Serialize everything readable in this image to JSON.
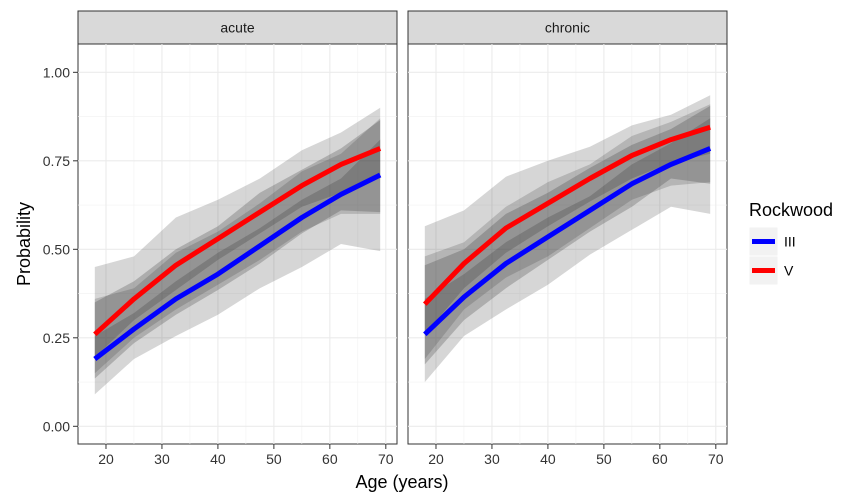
{
  "chart_data": {
    "type": "line",
    "xlabel": "Age (years)",
    "ylabel": "Probability",
    "xlim": [
      15,
      72
    ],
    "ylim": [
      -0.05,
      1.08
    ],
    "x_ticks": [
      20,
      30,
      40,
      50,
      60,
      70
    ],
    "y_ticks": [
      0,
      0.25,
      0.5,
      0.75,
      1.0
    ],
    "x_tick_labels": [
      "20",
      "30",
      "40",
      "50",
      "60",
      "70"
    ],
    "y_tick_labels": [
      "0.00",
      "0.25",
      "0.50",
      "0.75",
      "1.00"
    ],
    "grid": true,
    "legend": {
      "title": "Rockwood",
      "position": "right",
      "items": [
        {
          "label": "III",
          "color": "#0000ff"
        },
        {
          "label": "V",
          "color": "#ff0000"
        }
      ]
    },
    "panels": [
      {
        "label": "acute",
        "x": [
          18,
          25,
          32.5,
          40,
          47.5,
          55,
          62,
          69
        ],
        "series": [
          {
            "name": "III",
            "color": "#0000ff",
            "values": [
              0.19,
              0.275,
              0.36,
              0.43,
              0.51,
              0.59,
              0.655,
              0.71
            ],
            "ci_inner": {
              "lower": [
                0.135,
                0.235,
                0.315,
                0.385,
                0.46,
                0.545,
                0.61,
                0.605
              ],
              "upper": [
                0.255,
                0.32,
                0.41,
                0.49,
                0.56,
                0.64,
                0.7,
                0.81
              ]
            },
            "ci_outer": {
              "lower": [
                0.09,
                0.19,
                0.255,
                0.315,
                0.39,
                0.45,
                0.515,
                0.495
              ],
              "upper": [
                0.36,
                0.39,
                0.49,
                0.55,
                0.63,
                0.72,
                0.77,
                0.87
              ]
            }
          },
          {
            "name": "V",
            "color": "#ff0000",
            "values": [
              0.26,
              0.36,
              0.455,
              0.53,
              0.605,
              0.68,
              0.74,
              0.785
            ],
            "ci_inner": {
              "lower": [
                0.195,
                0.3,
                0.385,
                0.47,
                0.545,
                0.62,
                0.66,
                0.71
              ],
              "upper": [
                0.35,
                0.41,
                0.5,
                0.565,
                0.66,
                0.725,
                0.785,
                0.865
              ]
            },
            "ci_outer": {
              "lower": [
                0.15,
                0.25,
                0.33,
                0.4,
                0.47,
                0.55,
                0.6,
                0.6
              ],
              "upper": [
                0.45,
                0.48,
                0.59,
                0.64,
                0.7,
                0.78,
                0.83,
                0.9
              ]
            }
          }
        ]
      },
      {
        "label": "chronic",
        "x": [
          18,
          25,
          32.5,
          40,
          47.5,
          55,
          62,
          69
        ],
        "series": [
          {
            "name": "III",
            "color": "#0000ff",
            "values": [
              0.26,
              0.365,
              0.46,
              0.535,
              0.61,
              0.685,
              0.74,
              0.785
            ],
            "ci_inner": {
              "lower": [
                0.175,
                0.3,
                0.39,
                0.47,
                0.55,
                0.62,
                0.7,
                0.685
              ],
              "upper": [
                0.36,
                0.43,
                0.52,
                0.59,
                0.65,
                0.74,
                0.8,
                0.87
              ]
            },
            "ci_outer": {
              "lower": [
                0.125,
                0.255,
                0.33,
                0.4,
                0.485,
                0.555,
                0.62,
                0.6
              ],
              "upper": [
                0.48,
                0.52,
                0.62,
                0.69,
                0.74,
                0.82,
                0.86,
                0.91
              ]
            }
          },
          {
            "name": "V",
            "color": "#ff0000",
            "values": [
              0.345,
              0.46,
              0.56,
              0.63,
              0.7,
              0.765,
              0.81,
              0.845
            ],
            "ci_inner": {
              "lower": [
                0.26,
                0.39,
                0.49,
                0.565,
                0.635,
                0.7,
                0.745,
                0.77
              ],
              "upper": [
                0.455,
                0.5,
                0.6,
                0.66,
                0.73,
                0.795,
                0.84,
                0.905
              ]
            },
            "ci_outer": {
              "lower": [
                0.19,
                0.33,
                0.42,
                0.48,
                0.56,
                0.64,
                0.68,
                0.69
              ],
              "upper": [
                0.565,
                0.61,
                0.705,
                0.75,
                0.79,
                0.85,
                0.88,
                0.935
              ]
            }
          }
        ]
      }
    ]
  }
}
